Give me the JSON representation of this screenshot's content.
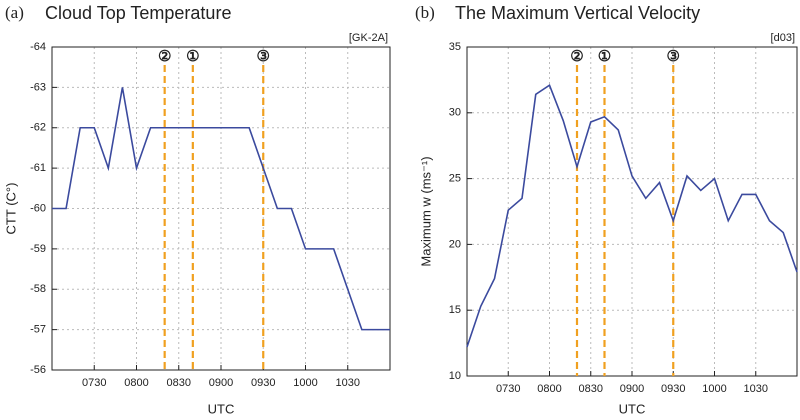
{
  "chart_data": [
    {
      "type": "line",
      "panel": "(a)",
      "title": "Cloud Top Temperature",
      "tag": "[GK-2A]",
      "x_label": "UTC",
      "y_label": "CTT (C°)",
      "x": [
        420,
        430,
        440,
        450,
        460,
        470,
        480,
        490,
        500,
        510,
        520,
        530,
        540,
        550,
        560,
        570,
        580,
        590,
        600,
        610,
        620,
        630,
        640,
        650,
        660
      ],
      "series": [
        {
          "name": "CTT",
          "color": "#3b4a9e",
          "values": [
            -60,
            -60,
            -62,
            -62,
            -61,
            -63,
            -61,
            -62,
            -62,
            -62,
            -62,
            -62,
            -62,
            -62,
            -62,
            -61,
            -60,
            -60,
            -59,
            -59,
            -59,
            -58,
            -57,
            -57,
            -57
          ]
        }
      ],
      "xlim": [
        420,
        660
      ],
      "xticks": [
        {
          "value": 450,
          "label": "0730"
        },
        {
          "value": 480,
          "label": "0800"
        },
        {
          "value": 510,
          "label": "0830"
        },
        {
          "value": 540,
          "label": "0900"
        },
        {
          "value": 570,
          "label": "0930"
        },
        {
          "value": 600,
          "label": "1000"
        },
        {
          "value": 630,
          "label": "1030"
        }
      ],
      "ylim": [
        -56,
        -64
      ],
      "yticks": [
        -64,
        -63,
        -62,
        -61,
        -60,
        -59,
        -58,
        -57,
        -56
      ],
      "grid": true,
      "markers": [
        {
          "label": "②",
          "x": 500
        },
        {
          "label": "①",
          "x": 520
        },
        {
          "label": "③",
          "x": 570
        }
      ],
      "marker_color": "#f0a020"
    },
    {
      "type": "line",
      "panel": "(b)",
      "title": "The Maximum Vertical Velocity",
      "tag": "[d03]",
      "x_label": "UTC",
      "y_label": "Maximum w (ms⁻¹)",
      "x": [
        420,
        430,
        440,
        450,
        460,
        470,
        480,
        490,
        500,
        510,
        520,
        530,
        540,
        550,
        560,
        570,
        580,
        590,
        600,
        610,
        620,
        630,
        640,
        650,
        660
      ],
      "series": [
        {
          "name": "w",
          "color": "#3b4a9e",
          "values": [
            12.2,
            15.3,
            17.4,
            22.6,
            23.5,
            31.4,
            32.1,
            29.4,
            25.9,
            29.3,
            29.7,
            28.7,
            25.2,
            23.5,
            24.7,
            21.8,
            25.2,
            24.1,
            25.0,
            21.8,
            23.8,
            23.8,
            21.8,
            20.9,
            17.9
          ]
        }
      ],
      "xlim": [
        420,
        660
      ],
      "xticks": [
        {
          "value": 450,
          "label": "0730"
        },
        {
          "value": 480,
          "label": "0800"
        },
        {
          "value": 510,
          "label": "0830"
        },
        {
          "value": 540,
          "label": "0900"
        },
        {
          "value": 570,
          "label": "0930"
        },
        {
          "value": 600,
          "label": "1000"
        },
        {
          "value": 630,
          "label": "1030"
        }
      ],
      "ylim": [
        10,
        35
      ],
      "yticks": [
        10,
        15,
        20,
        25,
        30,
        35
      ],
      "grid": true,
      "markers": [
        {
          "label": "②",
          "x": 500
        },
        {
          "label": "①",
          "x": 520
        },
        {
          "label": "③",
          "x": 570
        }
      ],
      "marker_color": "#f0a020"
    }
  ]
}
